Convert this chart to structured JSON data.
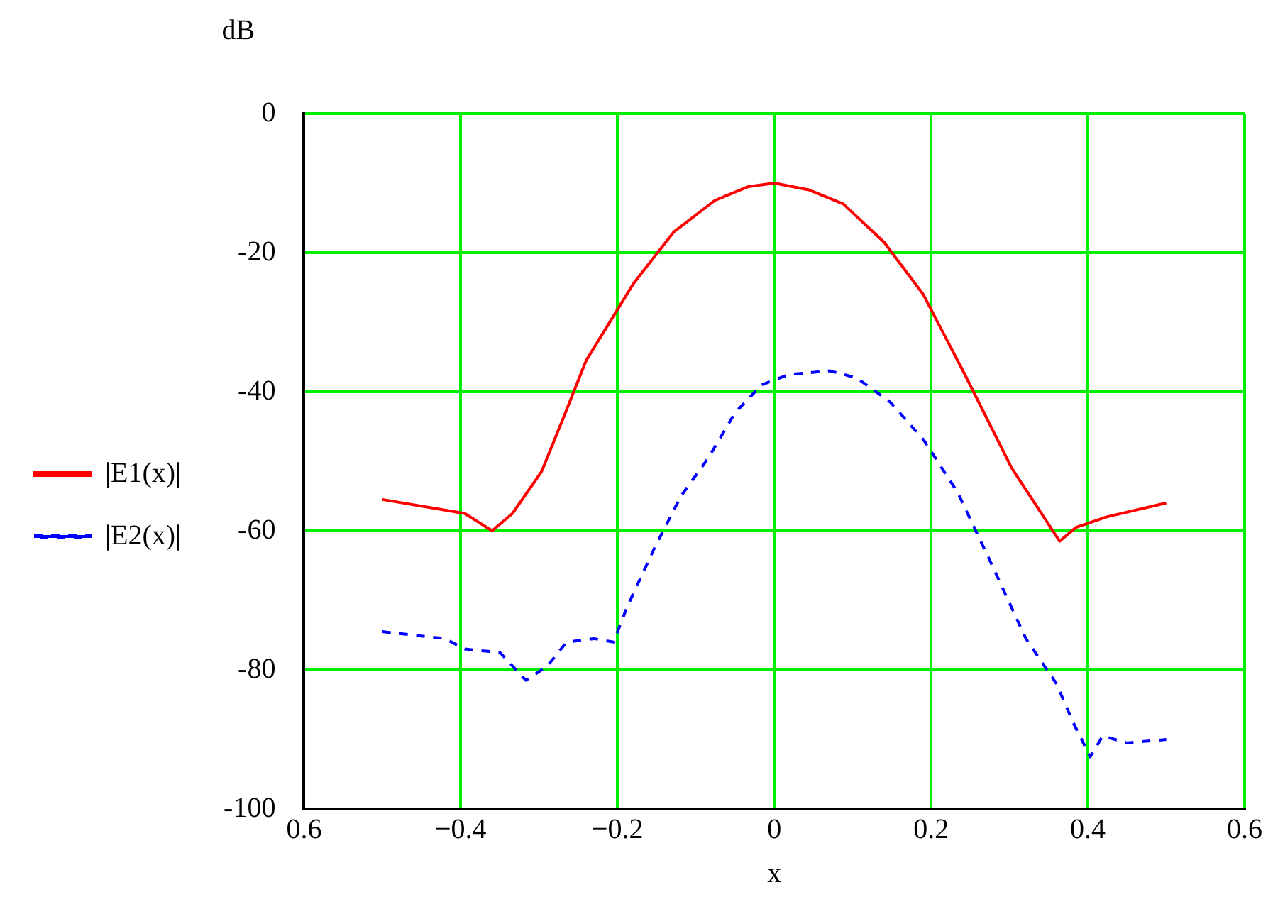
{
  "chart_data": {
    "type": "line",
    "xlabel": "x",
    "ylabel": "dB",
    "xlim": [
      -0.6,
      0.6
    ],
    "ylim": [
      -100,
      0
    ],
    "xticks": [
      {
        "value": -0.6,
        "label": "0.6"
      },
      {
        "value": -0.4,
        "label": "−0.4"
      },
      {
        "value": -0.2,
        "label": "−0.2"
      },
      {
        "value": 0,
        "label": "0"
      },
      {
        "value": 0.2,
        "label": "0.2"
      },
      {
        "value": 0.4,
        "label": "0.4"
      },
      {
        "value": 0.6,
        "label": "0.6"
      }
    ],
    "yticks": [
      0,
      -20,
      -40,
      -60,
      -80,
      -100
    ],
    "grid": true,
    "legend": "left",
    "marker": "none",
    "series": [
      {
        "name": "|E1(x)|",
        "color": "#ff0000",
        "line_style": "solid",
        "x": [
          -0.5,
          -0.395,
          -0.36,
          -0.334,
          -0.297,
          -0.27,
          -0.24,
          -0.18,
          -0.128,
          -0.076,
          -0.033,
          0,
          0.045,
          0.088,
          0.14,
          0.19,
          0.243,
          0.303,
          0.364,
          0.385,
          0.424,
          0.5
        ],
        "values": [
          -55.5,
          -57.5,
          -60,
          -57.5,
          -51.5,
          -44,
          -35.5,
          -24.5,
          -17,
          -12.5,
          -10.5,
          -10,
          -11,
          -13,
          -18.5,
          -26,
          -37.5,
          -51,
          -61.5,
          -59.5,
          -58,
          -56
        ]
      },
      {
        "name": "|E2(x)|",
        "color": "#0000ff",
        "line_style": "dashed",
        "x": [
          -0.5,
          -0.42,
          -0.395,
          -0.35,
          -0.317,
          -0.29,
          -0.265,
          -0.23,
          -0.205,
          -0.188,
          -0.153,
          -0.119,
          -0.084,
          -0.05,
          -0.016,
          0.019,
          0.071,
          0.105,
          0.148,
          0.191,
          0.234,
          0.278,
          0.321,
          0.36,
          0.381,
          0.403,
          0.419,
          0.45,
          0.5
        ],
        "values": [
          -74.5,
          -75.5,
          -77,
          -77.5,
          -81.5,
          -79.5,
          -76,
          -75.5,
          -76,
          -71,
          -62.5,
          -55,
          -49.5,
          -43,
          -39,
          -37.5,
          -37,
          -38,
          -41.5,
          -47,
          -54.5,
          -65,
          -75.5,
          -82,
          -87.5,
          -92.5,
          -89.5,
          -90.5,
          -90
        ]
      }
    ]
  }
}
